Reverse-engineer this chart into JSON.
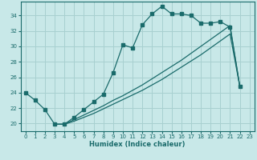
{
  "xlabel": "Humidex (Indice chaleur)",
  "ylabel": "",
  "bg_color": "#c8e8e8",
  "grid_color": "#a8d0d0",
  "line_color": "#1a6b6b",
  "xlim": [
    -0.5,
    23.5
  ],
  "ylim": [
    19.0,
    35.8
  ],
  "xticks": [
    0,
    1,
    2,
    3,
    4,
    5,
    6,
    7,
    8,
    9,
    10,
    11,
    12,
    13,
    14,
    15,
    16,
    17,
    18,
    19,
    20,
    21,
    22,
    23
  ],
  "yticks": [
    20,
    22,
    24,
    26,
    28,
    30,
    32,
    34
  ],
  "curve1_x": [
    0,
    1,
    2,
    3,
    4,
    5,
    6,
    7,
    8,
    9,
    10,
    11,
    12,
    13,
    14,
    15,
    16,
    17,
    18,
    19,
    20,
    21,
    22
  ],
  "curve1_y": [
    24.0,
    23.0,
    21.8,
    19.9,
    19.9,
    20.8,
    21.8,
    22.8,
    23.8,
    26.6,
    30.2,
    29.8,
    32.8,
    34.2,
    35.2,
    34.2,
    34.2,
    34.0,
    33.0,
    33.0,
    33.2,
    32.5,
    24.8
  ],
  "curve2_x": [
    3,
    4,
    5,
    6,
    7,
    8,
    9,
    10,
    11,
    12,
    13,
    14,
    15,
    16,
    17,
    18,
    19,
    20,
    21,
    22
  ],
  "curve2_y": [
    19.9,
    19.9,
    20.3,
    20.8,
    21.3,
    21.9,
    22.5,
    23.1,
    23.7,
    24.3,
    25.0,
    25.7,
    26.5,
    27.3,
    28.1,
    28.9,
    29.8,
    30.7,
    31.6,
    24.8
  ],
  "curve3_x": [
    3,
    4,
    5,
    6,
    7,
    8,
    9,
    10,
    11,
    12,
    13,
    14,
    15,
    16,
    17,
    18,
    19,
    20,
    21,
    22
  ],
  "curve3_y": [
    19.9,
    19.9,
    20.5,
    21.1,
    21.7,
    22.3,
    23.0,
    23.6,
    24.3,
    25.0,
    25.8,
    26.6,
    27.4,
    28.2,
    29.1,
    30.0,
    30.9,
    31.8,
    32.7,
    24.8
  ]
}
